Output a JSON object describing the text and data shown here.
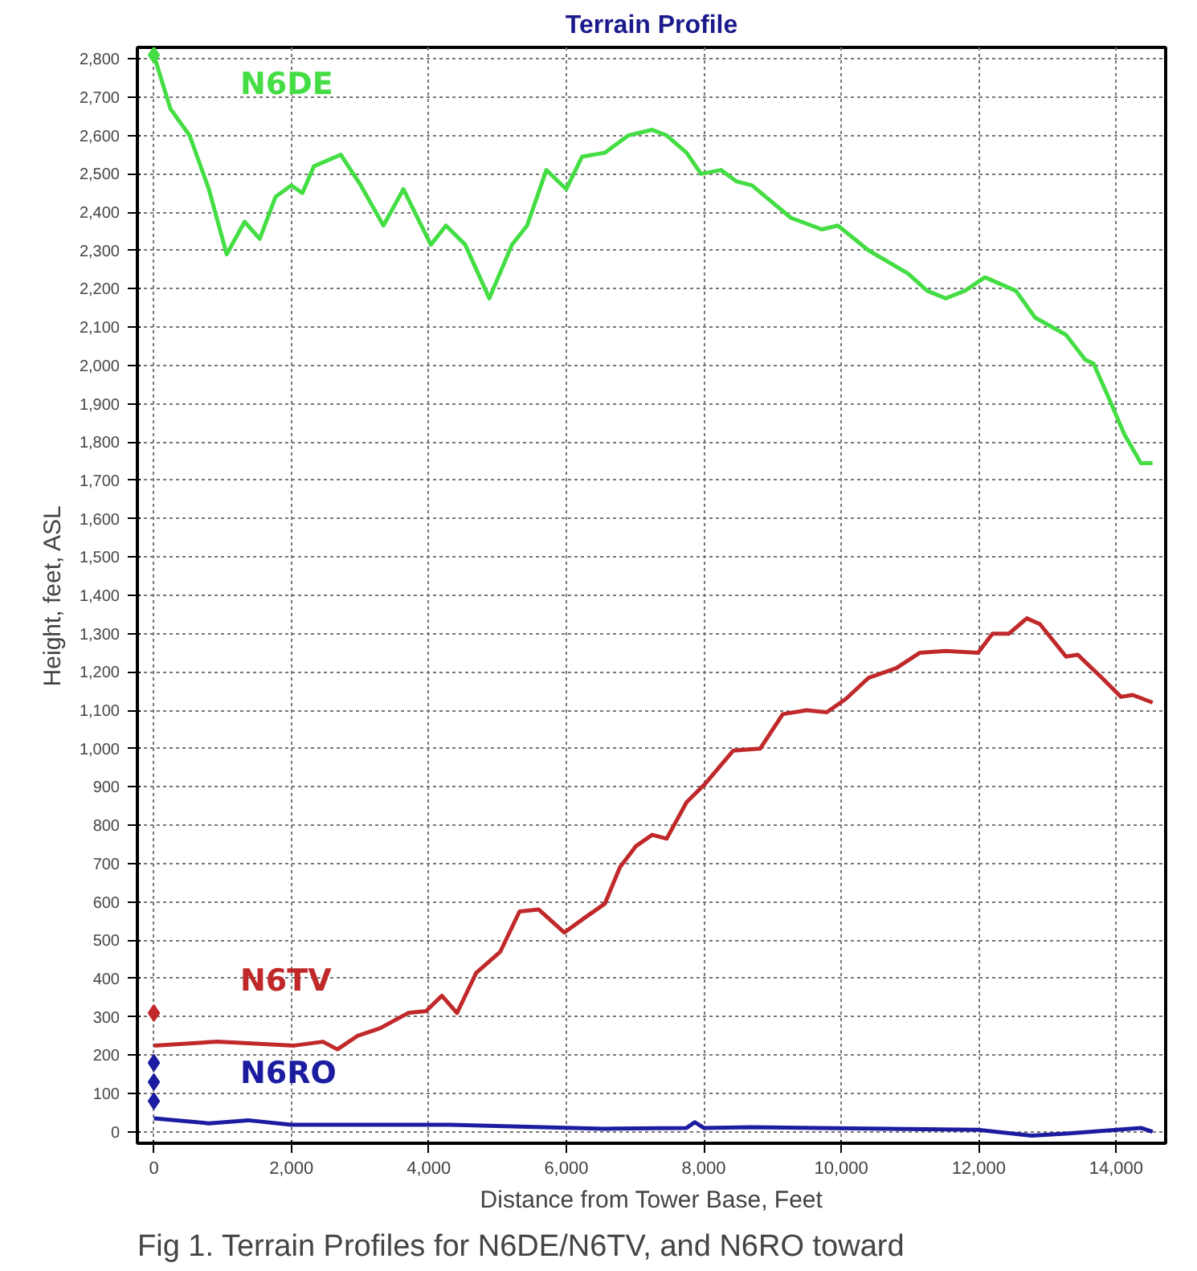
{
  "chart_data": {
    "type": "line",
    "title": "Terrain Profile",
    "xlabel": "Distance from Tower Base, Feet",
    "ylabel": "Height, feet, ASL",
    "annotations": [
      "Fig 1. Terrain Profiles for N6DE/N6TV, and N6RO toward"
    ],
    "xlim": [
      -240,
      14720
    ],
    "ylim": [
      -30,
      2830
    ],
    "xticks": [
      0,
      {
        "value": 2000,
        "label": "2,000"
      },
      {
        "value": 4000,
        "label": "4,000"
      },
      {
        "value": 6000,
        "label": "6,000"
      },
      {
        "value": 8000,
        "label": "8,000"
      },
      {
        "value": 10000,
        "label": "10,000"
      },
      {
        "value": 12000,
        "label": "12,000"
      },
      {
        "value": 14000,
        "label": "14,000"
      }
    ],
    "yticks": [
      0,
      100,
      200,
      300,
      400,
      500,
      600,
      700,
      800,
      900,
      {
        "value": 1000,
        "label": "1,000"
      },
      {
        "value": 1100,
        "label": "1,100"
      },
      {
        "value": 1200,
        "label": "1,200"
      },
      {
        "value": 1300,
        "label": "1,300"
      },
      {
        "value": 1400,
        "label": "1,400"
      },
      {
        "value": 1500,
        "label": "1,500"
      },
      {
        "value": 1600,
        "label": "1,600"
      },
      {
        "value": 1700,
        "label": "1,700"
      },
      {
        "value": 1800,
        "label": "1,800"
      },
      {
        "value": 1900,
        "label": "1,900"
      },
      {
        "value": 2000,
        "label": "2,000"
      },
      {
        "value": 2100,
        "label": "2,100"
      },
      {
        "value": 2200,
        "label": "2,200"
      },
      {
        "value": 2300,
        "label": "2,300"
      },
      {
        "value": 2400,
        "label": "2,400"
      },
      {
        "value": 2500,
        "label": "2,500"
      },
      {
        "value": 2600,
        "label": "2,600"
      },
      {
        "value": 2700,
        "label": "2,700"
      },
      {
        "value": 2800,
        "label": "2,800"
      }
    ],
    "grid": true,
    "line_style": "solid",
    "marker": "none",
    "series": [
      {
        "name": "N6DE",
        "color": "#44dd44",
        "x": [
          0,
          240,
          520,
          800,
          1060,
          1320,
          1540,
          1770,
          2000,
          2160,
          2330,
          2720,
          3010,
          3340,
          3630,
          4030,
          4250,
          4530,
          4880,
          5210,
          5430,
          5710,
          6000,
          6230,
          6560,
          6900,
          7250,
          7460,
          7750,
          7960,
          8250,
          8480,
          8700,
          9270,
          9720,
          9950,
          10400,
          10970,
          11250,
          11520,
          11800,
          12090,
          12540,
          12820,
          13270,
          13550,
          13670,
          13880,
          14120,
          14360,
          14530
        ],
        "values": [
          2810,
          2670,
          2600,
          2460,
          2290,
          2375,
          2330,
          2440,
          2470,
          2450,
          2520,
          2550,
          2470,
          2365,
          2460,
          2315,
          2365,
          2315,
          2175,
          2315,
          2365,
          2510,
          2460,
          2545,
          2555,
          2600,
          2615,
          2600,
          2555,
          2500,
          2510,
          2480,
          2470,
          2385,
          2355,
          2365,
          2300,
          2240,
          2195,
          2175,
          2195,
          2230,
          2195,
          2125,
          2080,
          2015,
          2005,
          1920,
          1820,
          1745,
          1745
        ]
      },
      {
        "name": "N6TV",
        "color": "#c0282a",
        "x": [
          0,
          920,
          2040,
          2460,
          2670,
          2960,
          3290,
          3700,
          3960,
          4190,
          4410,
          4690,
          5040,
          5320,
          5600,
          5970,
          6280,
          6560,
          6780,
          7010,
          7250,
          7460,
          7750,
          8030,
          8430,
          8820,
          9150,
          9500,
          9790,
          10070,
          10400,
          10800,
          11140,
          11520,
          11990,
          12200,
          12440,
          12700,
          12890,
          13270,
          13440,
          13790,
          14070,
          14240,
          14530
        ],
        "values": [
          225,
          235,
          225,
          235,
          215,
          250,
          270,
          310,
          315,
          355,
          310,
          415,
          470,
          575,
          580,
          520,
          560,
          595,
          690,
          745,
          775,
          765,
          860,
          910,
          995,
          1000,
          1090,
          1100,
          1095,
          1130,
          1185,
          1210,
          1250,
          1255,
          1250,
          1300,
          1300,
          1340,
          1325,
          1240,
          1245,
          1185,
          1135,
          1140,
          1120
        ]
      },
      {
        "name": "N6RO",
        "color": "#1c1ca0",
        "x": [
          0,
          800,
          1370,
          2000,
          4310,
          6560,
          7750,
          7870,
          8000,
          8700,
          11990,
          12770,
          13270,
          14360,
          14530
        ],
        "values": [
          35,
          22,
          30,
          18,
          18,
          8,
          10,
          25,
          10,
          12,
          5,
          -10,
          -5,
          10,
          0
        ]
      },
      {
        "type": "scatter",
        "marker": "diamond",
        "color": "#44dd44",
        "x": [
          0
        ],
        "values": [
          2810
        ]
      },
      {
        "type": "scatter",
        "marker": "diamond",
        "color": "#c0282a",
        "x": [
          0
        ],
        "values": [
          310
        ]
      },
      {
        "type": "scatter",
        "marker": "diamond",
        "color": "#1c1ca0",
        "x": [
          0,
          0,
          0
        ],
        "values": [
          180,
          130,
          80
        ]
      }
    ]
  }
}
